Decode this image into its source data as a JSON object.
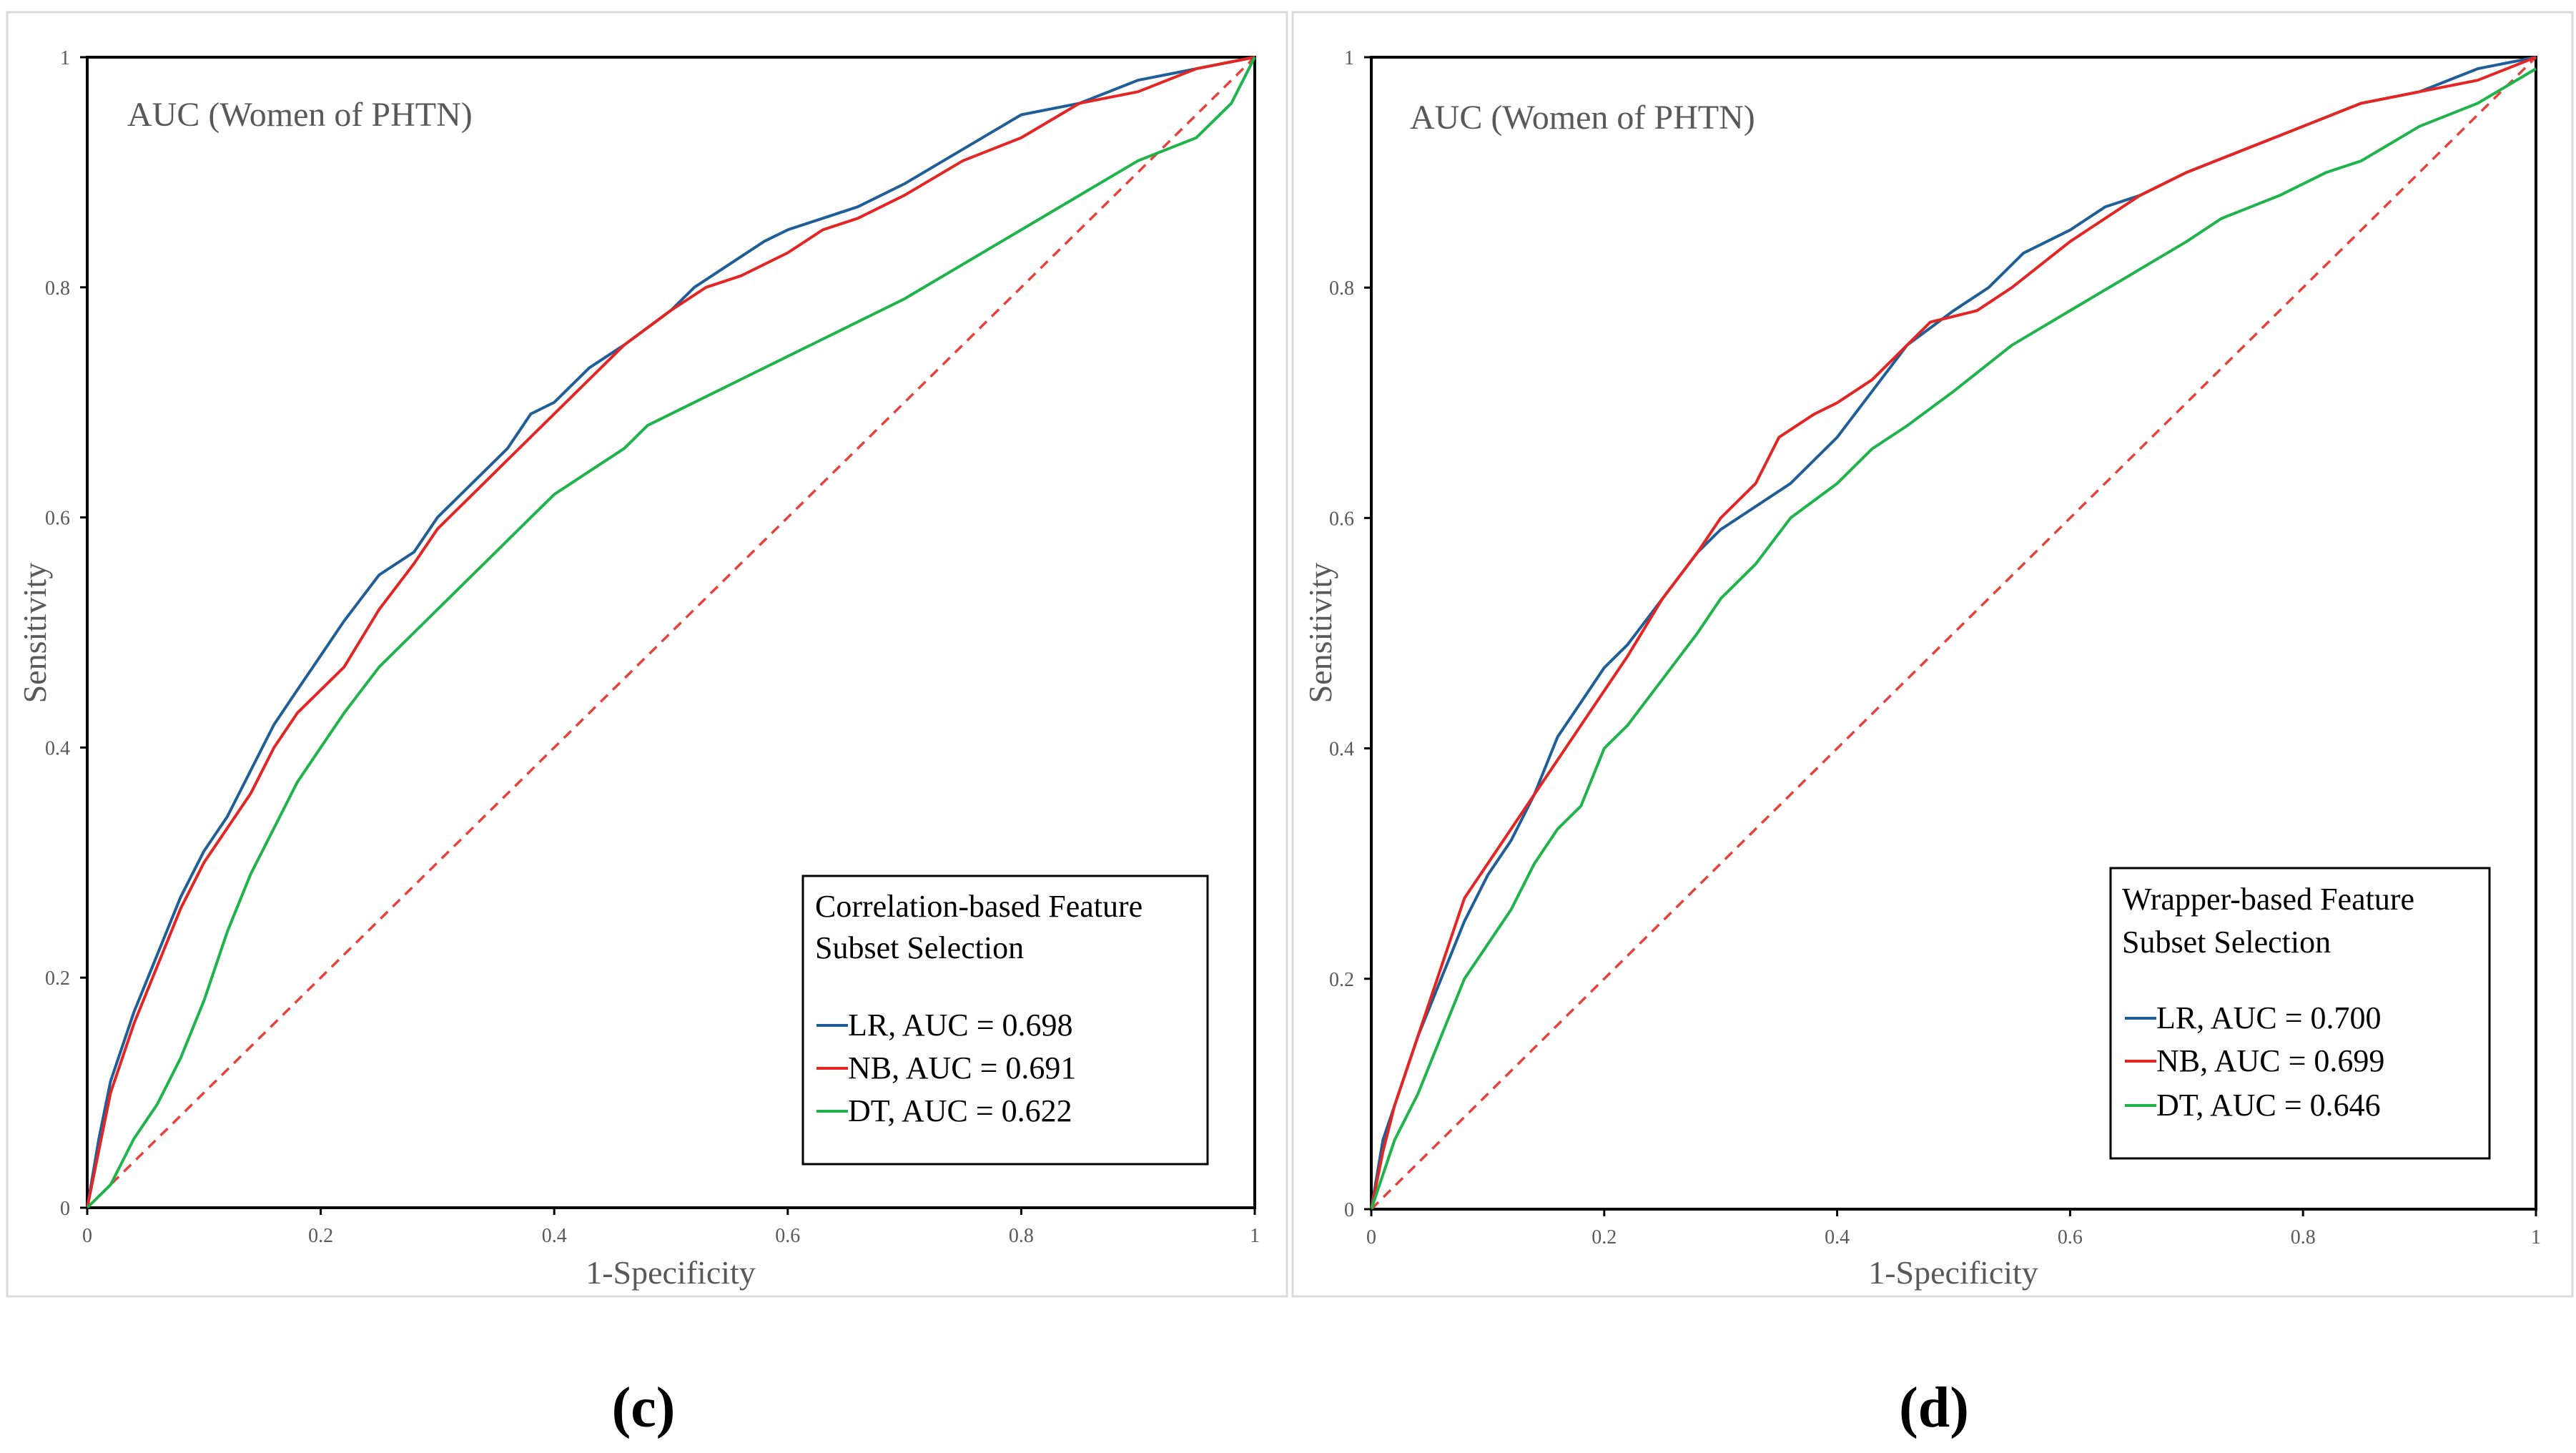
{
  "panels": [
    {
      "label": "(c)",
      "title": "AUC (Women of PHTN)",
      "legend_title": [
        "Correlation-based Feature",
        "Subset Selection"
      ],
      "legend_position": "bottom-right",
      "xlabel": "1-Specificity",
      "ylabel": "Sensitivity",
      "xlim": [
        0,
        1
      ],
      "ylim": [
        0,
        1
      ],
      "xticks": [
        "0",
        "0.2",
        "0.4",
        "0.6",
        "0.8",
        "1"
      ],
      "yticks": [
        "0",
        "0.2",
        "0.4",
        "0.6",
        "0.8",
        "1"
      ],
      "grid": false,
      "reference_line": {
        "color": "#e8413b",
        "style": "dashed",
        "from": [
          0,
          0
        ],
        "to": [
          1,
          1
        ]
      },
      "series": [
        {
          "name": "LR, AUC = 0.698",
          "color": "#1f5e96",
          "x": [
            0,
            0.01,
            0.02,
            0.04,
            0.06,
            0.08,
            0.1,
            0.12,
            0.14,
            0.16,
            0.18,
            0.2,
            0.22,
            0.25,
            0.28,
            0.3,
            0.33,
            0.36,
            0.38,
            0.4,
            0.43,
            0.46,
            0.5,
            0.52,
            0.55,
            0.58,
            0.6,
            0.63,
            0.66,
            0.7,
            0.75,
            0.8,
            0.85,
            0.9,
            0.95,
            1
          ],
          "y": [
            0,
            0.06,
            0.11,
            0.17,
            0.22,
            0.27,
            0.31,
            0.34,
            0.38,
            0.42,
            0.45,
            0.48,
            0.51,
            0.55,
            0.57,
            0.6,
            0.63,
            0.66,
            0.69,
            0.7,
            0.73,
            0.75,
            0.78,
            0.8,
            0.82,
            0.84,
            0.85,
            0.86,
            0.87,
            0.89,
            0.92,
            0.95,
            0.96,
            0.98,
            0.99,
            1
          ]
        },
        {
          "name": "NB, AUC = 0.691",
          "color": "#e32523",
          "x": [
            0,
            0.01,
            0.02,
            0.04,
            0.06,
            0.08,
            0.1,
            0.12,
            0.14,
            0.16,
            0.18,
            0.2,
            0.22,
            0.25,
            0.28,
            0.3,
            0.33,
            0.36,
            0.38,
            0.4,
            0.43,
            0.46,
            0.5,
            0.53,
            0.56,
            0.6,
            0.63,
            0.66,
            0.7,
            0.75,
            0.8,
            0.85,
            0.9,
            0.95,
            1
          ],
          "y": [
            0,
            0.05,
            0.1,
            0.16,
            0.21,
            0.26,
            0.3,
            0.33,
            0.36,
            0.4,
            0.43,
            0.45,
            0.47,
            0.52,
            0.56,
            0.59,
            0.62,
            0.65,
            0.67,
            0.69,
            0.72,
            0.75,
            0.78,
            0.8,
            0.81,
            0.83,
            0.85,
            0.86,
            0.88,
            0.91,
            0.93,
            0.96,
            0.97,
            0.99,
            1
          ]
        },
        {
          "name": "DT, AUC = 0.622",
          "color": "#1eb34b",
          "x": [
            0,
            0.02,
            0.04,
            0.06,
            0.08,
            0.1,
            0.12,
            0.14,
            0.16,
            0.18,
            0.2,
            0.22,
            0.25,
            0.28,
            0.32,
            0.35,
            0.38,
            0.4,
            0.43,
            0.46,
            0.48,
            0.52,
            0.56,
            0.6,
            0.64,
            0.68,
            0.7,
            0.75,
            0.8,
            0.85,
            0.9,
            0.95,
            0.98,
            1
          ],
          "y": [
            0,
            0.02,
            0.06,
            0.09,
            0.13,
            0.18,
            0.24,
            0.29,
            0.33,
            0.37,
            0.4,
            0.43,
            0.47,
            0.5,
            0.54,
            0.57,
            0.6,
            0.62,
            0.64,
            0.66,
            0.68,
            0.7,
            0.72,
            0.74,
            0.76,
            0.78,
            0.79,
            0.82,
            0.85,
            0.88,
            0.91,
            0.93,
            0.96,
            1
          ]
        }
      ]
    },
    {
      "label": "(d)",
      "title": "AUC (Women of PHTN)",
      "legend_title": [
        "Wrapper-based Feature",
        "Subset Selection"
      ],
      "legend_position": "bottom-right",
      "xlabel": "1-Specificity",
      "ylabel": "Sensitivity",
      "xlim": [
        0,
        1
      ],
      "ylim": [
        0,
        1
      ],
      "xticks": [
        "0",
        "0.2",
        "0.4",
        "0.6",
        "0.8",
        "1"
      ],
      "yticks": [
        "0",
        "0.2",
        "0.4",
        "0.6",
        "0.8",
        "1"
      ],
      "grid": false,
      "reference_line": {
        "color": "#e8413b",
        "style": "dashed",
        "from": [
          0,
          0
        ],
        "to": [
          1,
          1
        ]
      },
      "series": [
        {
          "name": "LR, AUC = 0.700",
          "color": "#1f5e96",
          "x": [
            0,
            0.01,
            0.02,
            0.04,
            0.06,
            0.08,
            0.1,
            0.12,
            0.14,
            0.16,
            0.18,
            0.2,
            0.22,
            0.25,
            0.28,
            0.3,
            0.33,
            0.36,
            0.38,
            0.4,
            0.43,
            0.46,
            0.5,
            0.53,
            0.56,
            0.6,
            0.63,
            0.66,
            0.7,
            0.75,
            0.8,
            0.85,
            0.9,
            0.95,
            1
          ],
          "y": [
            0,
            0.06,
            0.09,
            0.15,
            0.2,
            0.25,
            0.29,
            0.32,
            0.36,
            0.41,
            0.44,
            0.47,
            0.49,
            0.53,
            0.57,
            0.59,
            0.61,
            0.63,
            0.65,
            0.67,
            0.71,
            0.75,
            0.78,
            0.8,
            0.83,
            0.85,
            0.87,
            0.88,
            0.9,
            0.92,
            0.94,
            0.96,
            0.97,
            0.99,
            1
          ]
        },
        {
          "name": "NB, AUC = 0.699",
          "color": "#e32523",
          "x": [
            0,
            0.01,
            0.02,
            0.04,
            0.06,
            0.08,
            0.1,
            0.12,
            0.14,
            0.16,
            0.18,
            0.2,
            0.22,
            0.25,
            0.28,
            0.3,
            0.33,
            0.35,
            0.38,
            0.4,
            0.43,
            0.46,
            0.48,
            0.52,
            0.55,
            0.6,
            0.63,
            0.66,
            0.7,
            0.75,
            0.8,
            0.85,
            0.9,
            0.95,
            1
          ],
          "y": [
            0,
            0.05,
            0.09,
            0.15,
            0.21,
            0.27,
            0.3,
            0.33,
            0.36,
            0.39,
            0.42,
            0.45,
            0.48,
            0.53,
            0.57,
            0.6,
            0.63,
            0.67,
            0.69,
            0.7,
            0.72,
            0.75,
            0.77,
            0.78,
            0.8,
            0.84,
            0.86,
            0.88,
            0.9,
            0.92,
            0.94,
            0.96,
            0.97,
            0.98,
            1
          ]
        },
        {
          "name": "DT, AUC = 0.646",
          "color": "#1eb34b",
          "x": [
            0,
            0.01,
            0.02,
            0.04,
            0.06,
            0.08,
            0.1,
            0.12,
            0.14,
            0.16,
            0.18,
            0.2,
            0.22,
            0.25,
            0.28,
            0.3,
            0.33,
            0.36,
            0.4,
            0.43,
            0.46,
            0.5,
            0.55,
            0.6,
            0.65,
            0.7,
            0.73,
            0.78,
            0.82,
            0.85,
            0.9,
            0.95,
            1
          ],
          "y": [
            0,
            0.03,
            0.06,
            0.1,
            0.15,
            0.2,
            0.23,
            0.26,
            0.3,
            0.33,
            0.35,
            0.4,
            0.42,
            0.46,
            0.5,
            0.53,
            0.56,
            0.6,
            0.63,
            0.66,
            0.68,
            0.71,
            0.75,
            0.78,
            0.81,
            0.84,
            0.86,
            0.88,
            0.9,
            0.91,
            0.94,
            0.96,
            0.99
          ]
        }
      ]
    }
  ]
}
